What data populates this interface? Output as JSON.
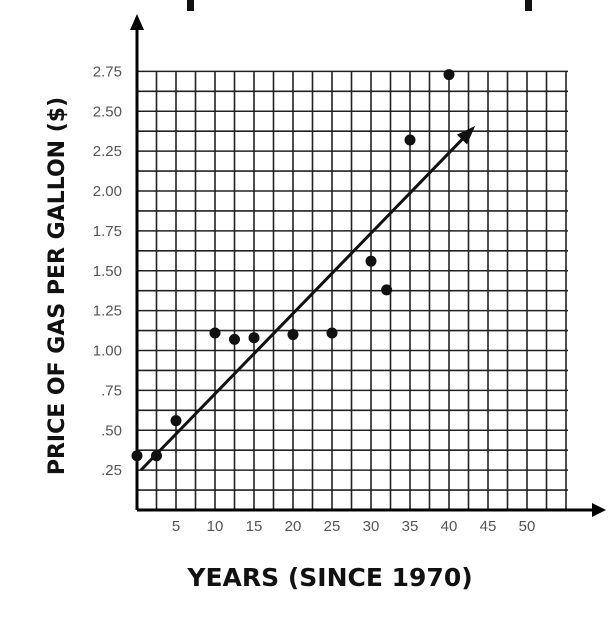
{
  "chart_data": {
    "type": "scatter",
    "title": "",
    "xlabel": "YEARS (SINCE 1970)",
    "ylabel": "PRICE OF GAS PER GALLON ($)",
    "xlim": [
      0,
      55
    ],
    "ylim": [
      0,
      2.75
    ],
    "x_ticks": [
      5,
      10,
      15,
      20,
      25,
      30,
      35,
      40,
      45,
      50
    ],
    "x_tick_labels": [
      "5",
      "10",
      "15",
      "20",
      "25",
      "30",
      "35",
      "40",
      "45",
      "50"
    ],
    "y_ticks": [
      0.25,
      0.5,
      0.75,
      1.0,
      1.25,
      1.5,
      1.75,
      2.0,
      2.25,
      2.5,
      2.75
    ],
    "y_tick_labels": [
      ".25",
      ".50",
      ".75",
      "1.00",
      "1.25",
      "1.50",
      "1.75",
      "2.00",
      "2.25",
      "2.50",
      "2.75"
    ],
    "grid": true,
    "points": [
      {
        "x": 0,
        "y": 0.34
      },
      {
        "x": 2.5,
        "y": 0.34
      },
      {
        "x": 5,
        "y": 0.56
      },
      {
        "x": 10,
        "y": 1.11
      },
      {
        "x": 12.5,
        "y": 1.07
      },
      {
        "x": 15,
        "y": 1.08
      },
      {
        "x": 20,
        "y": 1.1
      },
      {
        "x": 25,
        "y": 1.11
      },
      {
        "x": 30,
        "y": 1.56
      },
      {
        "x": 32,
        "y": 1.38
      },
      {
        "x": 35,
        "y": 2.32
      },
      {
        "x": 40,
        "y": 2.73
      }
    ],
    "trend_line": {
      "x0": 0.5,
      "y0": 0.25,
      "x1": 43,
      "y1": 2.39
    },
    "colors": {
      "grid": "#222222",
      "points": "#111111",
      "line": "#111111",
      "tick_text": "#555555"
    }
  }
}
